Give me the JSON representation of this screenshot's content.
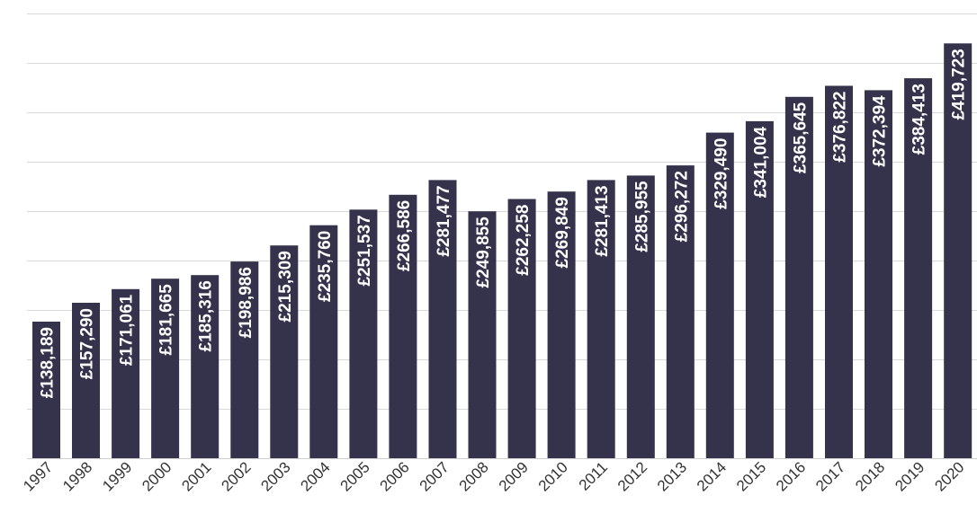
{
  "chart_data": {
    "type": "bar",
    "title": "",
    "xlabel": "",
    "ylabel": "",
    "ylim": [
      0,
      450000
    ],
    "grid": true,
    "colors": {
      "bar": "#35324b",
      "label": "#ffffff",
      "grid": "#d9d9d9",
      "tick": "#333333"
    },
    "categories": [
      "1997",
      "1998",
      "1999",
      "2000",
      "2001",
      "2002",
      "2003",
      "2004",
      "2005",
      "2006",
      "2007",
      "2008",
      "2009",
      "2010",
      "2011",
      "2012",
      "2013",
      "2014",
      "2015",
      "2016",
      "2017",
      "2018",
      "2019",
      "2020"
    ],
    "values": [
      138189,
      157290,
      171061,
      181665,
      185316,
      198986,
      215309,
      235760,
      251537,
      266586,
      281477,
      249855,
      262258,
      269849,
      281413,
      285955,
      296272,
      329490,
      341004,
      365645,
      376822,
      372394,
      384413,
      419723
    ],
    "data_labels": [
      "£138,189",
      "£157,290",
      "£171,061",
      "£181,665",
      "£185,316",
      "£198,986",
      "£215,309",
      "£235,760",
      "£251,537",
      "£266,586",
      "£281,477",
      "£249,855",
      "£262,258",
      "£269,849",
      "£281,413",
      "£285,955",
      "£296,272",
      "£329,490",
      "£341,004",
      "£365,645",
      "£376,822",
      "£372,394",
      "£384,413",
      "£419,723"
    ]
  }
}
